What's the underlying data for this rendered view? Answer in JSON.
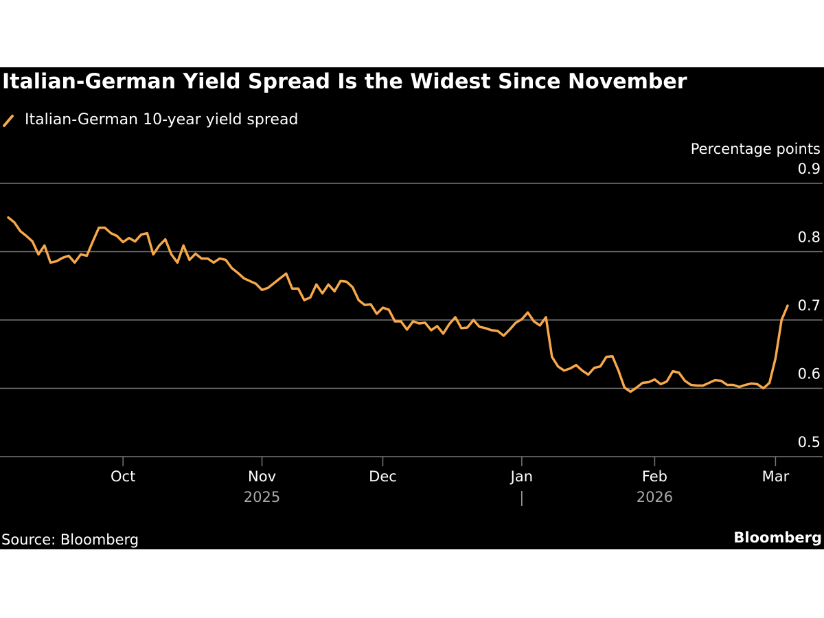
{
  "chart_data": {
    "type": "line",
    "title": "Italian-German Yield Spread Is the Widest Since November",
    "y_label": "Percentage points",
    "source": "Source: Bloomberg",
    "credit": "Bloomberg",
    "categories": [
      null,
      null,
      null,
      null,
      null,
      null,
      null,
      null,
      null,
      null,
      null,
      null,
      null,
      null,
      null,
      null,
      null,
      null,
      null,
      "Oct",
      null,
      null,
      null,
      null,
      null,
      null,
      null,
      null,
      null,
      null,
      null,
      null,
      null,
      null,
      null,
      null,
      null,
      null,
      null,
      null,
      null,
      null,
      "Nov",
      null,
      null,
      null,
      null,
      null,
      null,
      null,
      null,
      null,
      null,
      null,
      null,
      null,
      null,
      null,
      null,
      null,
      null,
      null,
      "Dec",
      null,
      null,
      null,
      null,
      null,
      null,
      null,
      null,
      null,
      null,
      null,
      null,
      null,
      null,
      null,
      null,
      null,
      null,
      null,
      null,
      null,
      null,
      "Jan",
      null,
      null,
      null,
      null,
      null,
      null,
      null,
      null,
      null,
      null,
      null,
      null,
      null,
      null,
      null,
      null,
      null,
      null,
      null,
      null,
      null,
      "Feb",
      null,
      null,
      null,
      null,
      null,
      null,
      null,
      null,
      null,
      null,
      null,
      null,
      null,
      null,
      null,
      null,
      null,
      null,
      null,
      "Mar",
      null,
      null
    ],
    "category_years": [
      null,
      null,
      null,
      null,
      null,
      null,
      null,
      null,
      null,
      null,
      null,
      null,
      null,
      null,
      null,
      null,
      null,
      null,
      null,
      null,
      null,
      null,
      null,
      null,
      null,
      null,
      null,
      null,
      null,
      null,
      null,
      null,
      null,
      null,
      null,
      null,
      null,
      null,
      null,
      null,
      null,
      null,
      "2025",
      null,
      null,
      null,
      null,
      null,
      null,
      null,
      null,
      null,
      null,
      null,
      null,
      null,
      null,
      null,
      null,
      null,
      null,
      null,
      null,
      null,
      null,
      null,
      null,
      null,
      null,
      null,
      null,
      null,
      null,
      null,
      null,
      null,
      null,
      null,
      null,
      null,
      null,
      null,
      null,
      null,
      null,
      null,
      null,
      null,
      null,
      null,
      null,
      null,
      null,
      null,
      null,
      null,
      null,
      null,
      null,
      null,
      null,
      null,
      null,
      null,
      null,
      null,
      null,
      "2026",
      null,
      null,
      null,
      null,
      null,
      null,
      null,
      null,
      null,
      null,
      null,
      null,
      null,
      null,
      null,
      null,
      null,
      null,
      null,
      null,
      null,
      null
    ],
    "series": [
      {
        "name": "Italian-German 10-year yield spread",
        "color": "#f7a84a",
        "values": [
          0.85,
          0.843,
          0.83,
          0.823,
          0.815,
          0.796,
          0.809,
          0.784,
          0.786,
          0.791,
          0.794,
          0.784,
          0.796,
          0.794,
          0.815,
          0.835,
          0.835,
          0.827,
          0.823,
          0.814,
          0.82,
          0.815,
          0.825,
          0.827,
          0.796,
          0.809,
          0.818,
          0.796,
          0.784,
          0.809,
          0.788,
          0.797,
          0.79,
          0.79,
          0.784,
          0.79,
          0.788,
          0.776,
          0.769,
          0.761,
          0.757,
          0.753,
          0.744,
          0.747,
          0.754,
          0.761,
          0.768,
          0.746,
          0.746,
          0.729,
          0.733,
          0.752,
          0.739,
          0.752,
          0.742,
          0.757,
          0.756,
          0.748,
          0.729,
          0.722,
          0.723,
          0.709,
          0.718,
          0.715,
          0.698,
          0.698,
          0.686,
          0.698,
          0.695,
          0.696,
          0.685,
          0.691,
          0.68,
          0.694,
          0.704,
          0.688,
          0.689,
          0.7,
          0.69,
          0.688,
          0.685,
          0.684,
          0.677,
          0.686,
          0.696,
          0.701,
          0.711,
          0.698,
          0.692,
          0.704,
          0.646,
          0.632,
          0.626,
          0.629,
          0.634,
          0.626,
          0.62,
          0.63,
          0.632,
          0.646,
          0.647,
          0.626,
          0.601,
          0.595,
          0.601,
          0.608,
          0.609,
          0.613,
          0.606,
          0.61,
          0.625,
          0.623,
          0.611,
          0.605,
          0.604,
          0.604,
          0.608,
          0.612,
          0.611,
          0.605,
          0.605,
          0.602,
          0.605,
          0.607,
          0.606,
          0.6,
          0.608,
          0.644,
          0.7,
          0.721
        ]
      }
    ],
    "ylim": [
      0.5,
      0.9
    ],
    "yticks": [
      0.5,
      0.6,
      0.7,
      0.8,
      0.9
    ],
    "grid": true
  }
}
